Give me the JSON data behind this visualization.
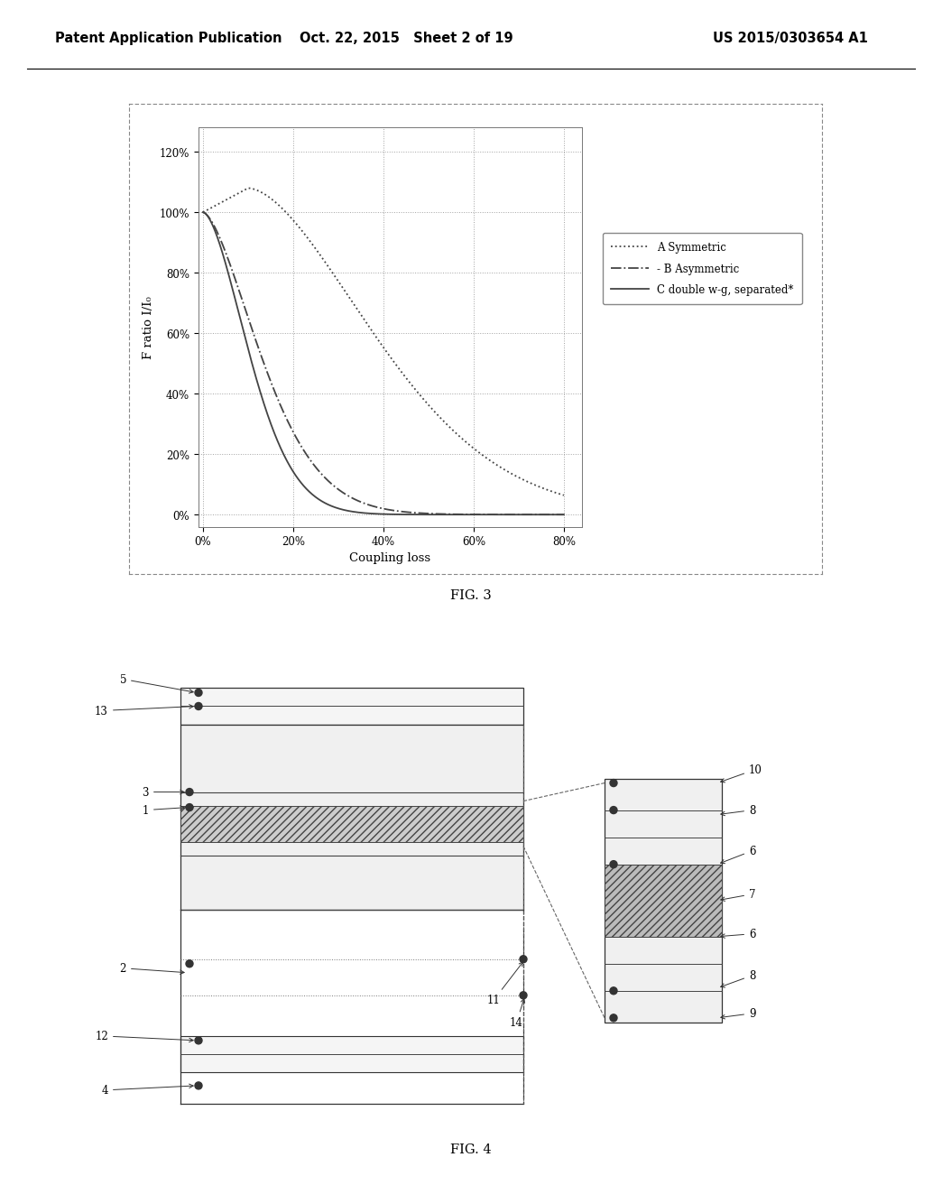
{
  "page_header_left": "Patent Application Publication",
  "page_header_mid": "Oct. 22, 2015   Sheet 2 of 19",
  "page_header_right": "US 2015/0303654 A1",
  "fig3_title": "FIG. 3",
  "fig4_title": "FIG. 4",
  "fig3_ylabel": "F ratio I/I₀",
  "fig3_xlabel": "Coupling loss",
  "fig3_yticks": [
    0,
    20,
    40,
    60,
    80,
    100,
    120
  ],
  "fig3_xticks": [
    0,
    20,
    40,
    60,
    80
  ],
  "fig3_ylim": [
    -4,
    128
  ],
  "fig3_xlim": [
    -1,
    84
  ],
  "legend_A": "A Symmetric",
  "legend_B": "- B Asymmetric",
  "legend_C": "C double w-g, separated*",
  "background_color": "#ffffff",
  "chart_bg": "#ffffff",
  "grid_color": "#999999",
  "line_color": "#444444"
}
